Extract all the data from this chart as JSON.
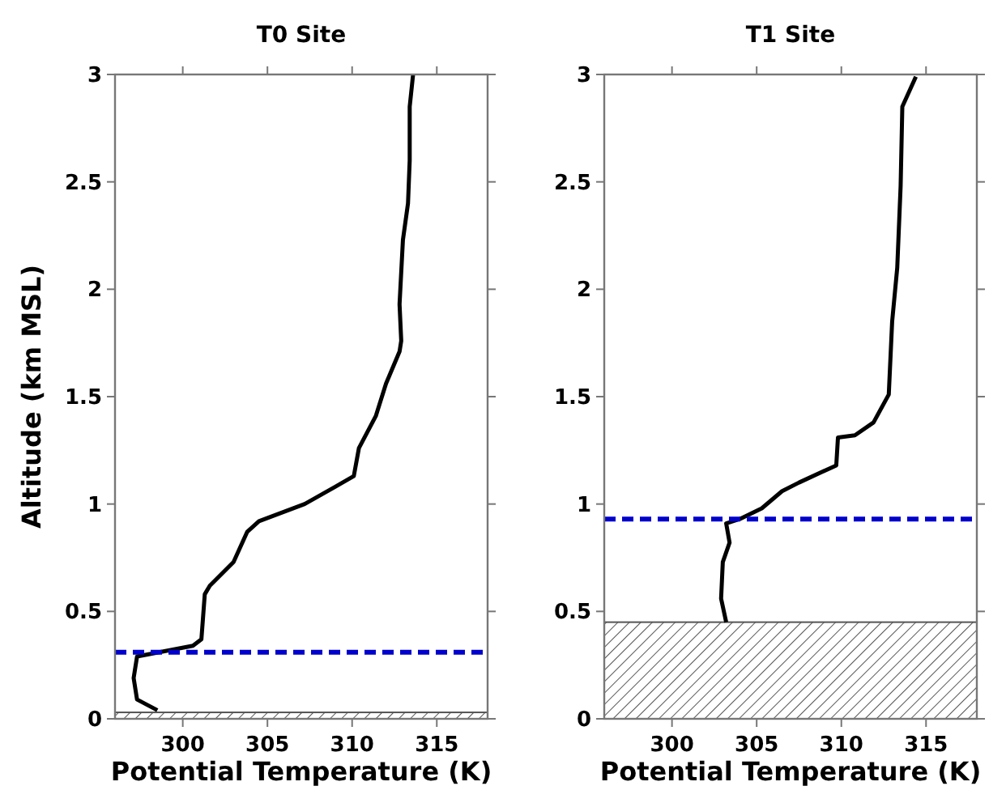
{
  "chart_data": [
    {
      "type": "line",
      "title": "T0 Site",
      "xlabel": "Potential Temperature (K)",
      "ylabel": "Altitude (km MSL)",
      "xlim": [
        296,
        318
      ],
      "xticks": [
        300,
        305,
        310,
        315
      ],
      "ylim": [
        0,
        3
      ],
      "yticks": [
        0,
        0.5,
        1,
        1.5,
        2,
        2.5,
        3
      ],
      "grid": false,
      "line_style": "solid",
      "series": [
        {
          "color": "#000000",
          "x": [
            298.5,
            297.3,
            297.1,
            297.3,
            300.6,
            301.1,
            301.3,
            301.6,
            303.0,
            303.8,
            304.5,
            307.2,
            309.0,
            310.1,
            310.4,
            311.4,
            312.0,
            312.8,
            312.9,
            312.8,
            313.0,
            313.3,
            313.4,
            313.4,
            313.6
          ],
          "values": [
            0.04,
            0.09,
            0.19,
            0.29,
            0.34,
            0.37,
            0.58,
            0.62,
            0.73,
            0.87,
            0.92,
            1.0,
            1.08,
            1.13,
            1.26,
            1.41,
            1.56,
            1.71,
            1.76,
            1.93,
            2.23,
            2.4,
            2.6,
            2.85,
            3.0
          ]
        }
      ],
      "ref_lines": [
        {
          "axis": "y",
          "value": 0.31,
          "color": "#0000cc",
          "line_style": "dashed"
        }
      ],
      "bands": [
        {
          "axis": "y",
          "from": 0,
          "to": 0.03,
          "color": "#555555"
        }
      ]
    },
    {
      "type": "line",
      "title": "T1 Site",
      "xlabel": "Potential Temperature (K)",
      "xlim": [
        296,
        318
      ],
      "xticks": [
        300,
        305,
        310,
        315
      ],
      "ylim": [
        0,
        3
      ],
      "yticks": [
        0,
        0.5,
        1,
        1.5,
        2,
        2.5,
        3
      ],
      "grid": false,
      "line_style": "solid",
      "series": [
        {
          "color": "#000000",
          "x": [
            303.2,
            302.9,
            303.0,
            303.4,
            303.2,
            304.0,
            305.3,
            306.5,
            307.5,
            309.7,
            309.8,
            310.8,
            311.9,
            312.8,
            313.0,
            313.3,
            313.5,
            313.6,
            314.4
          ],
          "values": [
            0.45,
            0.56,
            0.73,
            0.82,
            0.91,
            0.93,
            0.98,
            1.06,
            1.1,
            1.18,
            1.31,
            1.32,
            1.38,
            1.51,
            1.85,
            2.1,
            2.48,
            2.85,
            2.99
          ]
        }
      ],
      "ref_lines": [
        {
          "axis": "y",
          "value": 0.93,
          "color": "#0000cc",
          "line_style": "dashed"
        }
      ],
      "bands": [
        {
          "axis": "y",
          "from": 0,
          "to": 0.45,
          "color": "#555555"
        }
      ]
    }
  ]
}
